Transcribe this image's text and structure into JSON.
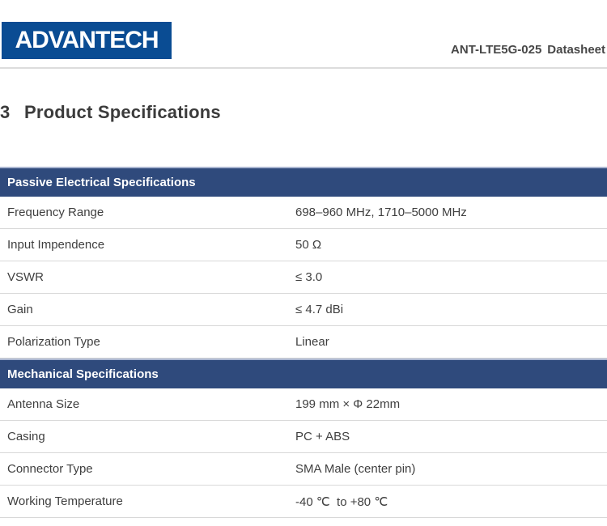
{
  "header": {
    "logo_text": "ADVANTECH",
    "doc_title_model": "ANT-LTE5G-025",
    "doc_title_label": "Datasheet"
  },
  "section": {
    "number": "3",
    "title": "Product Specifications"
  },
  "table": {
    "groups": [
      {
        "header": "Passive Electrical Specifications",
        "rows": [
          {
            "label": "Frequency Range",
            "value": "698–960 MHz, 1710–5000 MHz"
          },
          {
            "label": "Input Impendence",
            "value": "50 Ω"
          },
          {
            "label": "VSWR",
            "value": "≤ 3.0"
          },
          {
            "label": "Gain",
            "value": "≤ 4.7 dBi"
          },
          {
            "label": "Polarization Type",
            "value": "Linear"
          }
        ]
      },
      {
        "header": "Mechanical Specifications",
        "rows": [
          {
            "label": "Antenna Size",
            "value": "199 mm × Φ 22mm"
          },
          {
            "label": "Casing",
            "value": "PC + ABS"
          },
          {
            "label": "Connector Type",
            "value": "SMA Male (center pin)"
          },
          {
            "label": "Working Temperature",
            "value": "-40 ℃  to +80 ℃"
          }
        ]
      }
    ]
  },
  "colors": {
    "logo_bg": "#0a4c93",
    "bar_bg": "#2f4a7c",
    "bar_top": "#aab6d1",
    "divider": "#d8d8d8",
    "text": "#3f3f3f"
  }
}
